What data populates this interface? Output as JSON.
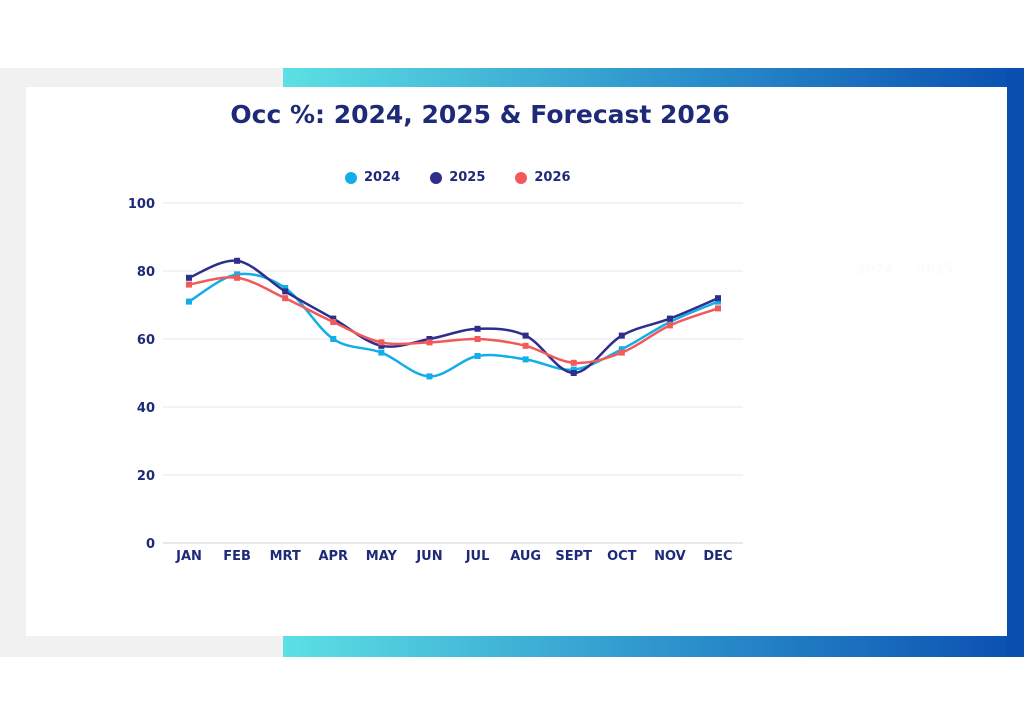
{
  "chart_data": {
    "type": "line",
    "title": "Occ %: 2024, 2025 & Forecast 2026",
    "categories": [
      "JAN",
      "FEB",
      "MRT",
      "APR",
      "MAY",
      "JUN",
      "JUL",
      "AUG",
      "SEPT",
      "OCT",
      "NOV",
      "DEC"
    ],
    "series": [
      {
        "name": "2024",
        "color": "#12aee8",
        "values": [
          71,
          79,
          75,
          60,
          56,
          49,
          55,
          54,
          51,
          57,
          65,
          71
        ]
      },
      {
        "name": "2025",
        "color": "#2e2e8c",
        "values": [
          78,
          83,
          74,
          66,
          58,
          60,
          63,
          61,
          50,
          61,
          66,
          72
        ]
      },
      {
        "name": "2026",
        "color": "#f25a5a",
        "values": [
          76,
          78,
          72,
          65,
          59,
          59,
          60,
          58,
          53,
          56,
          64,
          69
        ]
      }
    ],
    "yticks": [
      "0",
      "20",
      "40",
      "60",
      "80",
      "100"
    ],
    "ylim": [
      0,
      100
    ],
    "grid": true,
    "legend_position": "top-center",
    "xlabel": "",
    "ylabel": ""
  },
  "ghost_labels": [
    "2024",
    "2025"
  ]
}
